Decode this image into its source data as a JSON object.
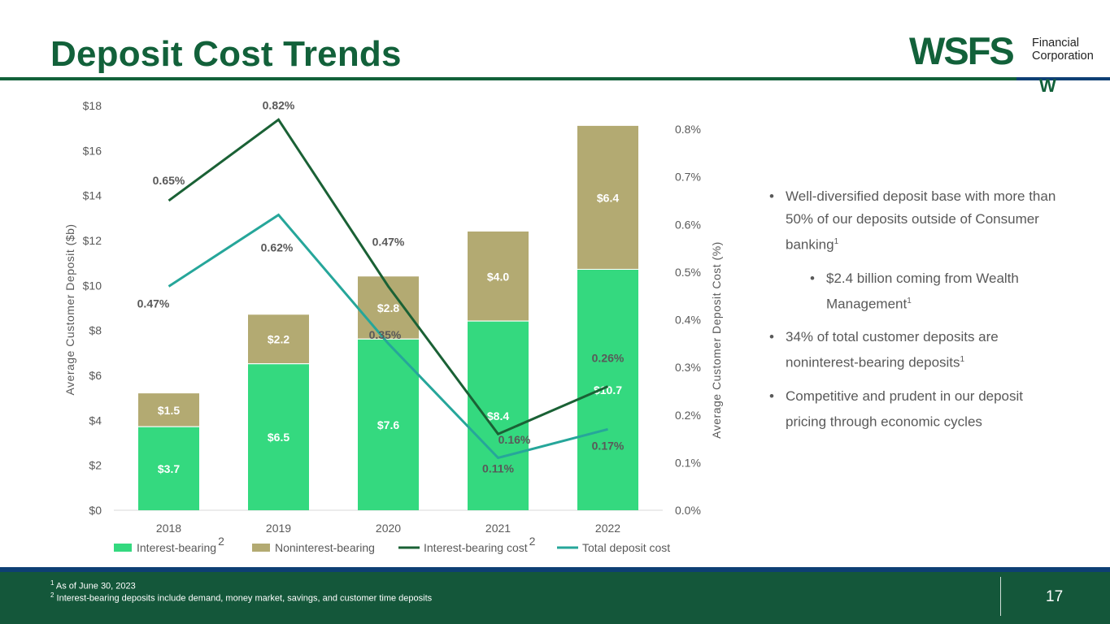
{
  "title": "Deposit Cost Trends",
  "logo": {
    "main": "WSFS",
    "sub1": "Financial",
    "sub2": "Corporation",
    "mark": "W"
  },
  "colors": {
    "brand_green": "#12613a",
    "brand_blue": "#0e3f74",
    "interest_bearing": "#34d97f",
    "noninterest_bearing": "#b3aa72",
    "ib_cost_line": "#1a6135",
    "total_cost_line": "#26a69a"
  },
  "chart_data": {
    "type": "bar",
    "categories": [
      "2018",
      "2019",
      "2020",
      "2021",
      "2022"
    ],
    "series": [
      {
        "name": "Interest-bearing",
        "sup": "2",
        "kind": "bar",
        "axis": "left",
        "values": [
          3.7,
          6.5,
          7.6,
          8.4,
          10.7
        ],
        "labels": [
          "$3.7",
          "$6.5",
          "$7.6",
          "$8.4",
          "$10.7"
        ]
      },
      {
        "name": "Noninterest-bearing",
        "sup": "",
        "kind": "bar",
        "axis": "left",
        "values": [
          1.5,
          2.2,
          2.8,
          4.0,
          6.4
        ],
        "labels": [
          "$1.5",
          "$2.2",
          "$2.8",
          "$4.0",
          "$6.4"
        ]
      },
      {
        "name": "Interest-bearing cost",
        "sup": "2",
        "kind": "line",
        "axis": "right",
        "values": [
          0.65,
          0.82,
          0.47,
          0.16,
          0.26
        ],
        "labels": [
          "0.65%",
          "0.82%",
          "0.47%",
          "0.16%",
          "0.26%"
        ]
      },
      {
        "name": "Total deposit cost",
        "sup": "",
        "kind": "line",
        "axis": "right",
        "values": [
          0.47,
          0.62,
          0.35,
          0.11,
          0.17
        ],
        "labels": [
          "0.47%",
          "0.62%",
          "0.35%",
          "0.11%",
          "0.17%"
        ]
      }
    ],
    "ylabel": "Average Customer Deposit  ($b)",
    "y2label": "Average Customer Deposit Cost (%)",
    "ylim": [
      0,
      18
    ],
    "y2lim": [
      0,
      0.8
    ],
    "yticks": [
      "$0",
      "$2",
      "$4",
      "$6",
      "$8",
      "$10",
      "$12",
      "$14",
      "$16",
      "$18"
    ],
    "y2ticks": [
      "0.0%",
      "0.1%",
      "0.2%",
      "0.3%",
      "0.4%",
      "0.5%",
      "0.6%",
      "0.7%",
      "0.8%"
    ],
    "legend_position": "bottom",
    "grid": false
  },
  "bullets": [
    {
      "text": "Well-diversified deposit base with more than 50% of our deposits outside of Consumer banking",
      "sup": "1"
    },
    {
      "text": "$2.4 billion coming from Wealth Management",
      "sup": "1"
    },
    {
      "text": "34% of total customer deposits are noninterest-bearing deposits",
      "sup": "1"
    },
    {
      "text": "Competitive and prudent in our deposit pricing through economic cycles",
      "sup": ""
    }
  ],
  "footnotes": [
    {
      "num": "1",
      "text": "As of June 30, 2023"
    },
    {
      "num": "2",
      "text": "Interest-bearing deposits include demand, money market, savings, and customer time deposits"
    }
  ],
  "page_number": "17"
}
